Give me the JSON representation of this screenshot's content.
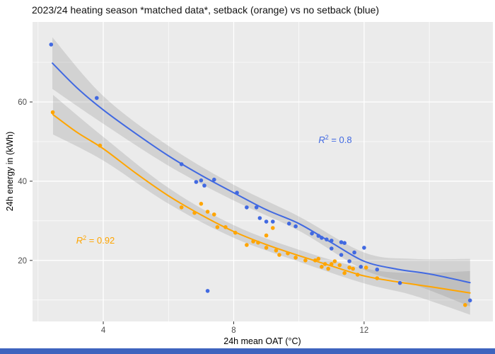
{
  "chart_data": {
    "type": "scatter",
    "title": "2023/24 heating season *matched data*, setback (orange) vs no setback (blue)",
    "xlabel": "24h mean OAT (°C)",
    "ylabel": "24h energy in (kWh)",
    "xlim": [
      1.83,
      15.95
    ],
    "ylim": [
      4.6,
      80.2
    ],
    "x_major_ticks": [
      4,
      8,
      12
    ],
    "x_minor_ticks": [
      2,
      6,
      10,
      14
    ],
    "y_major_ticks": [
      20,
      40,
      60
    ],
    "y_minor_ticks": [
      10,
      30,
      50,
      70
    ],
    "grid": true,
    "legend_position": "none",
    "panel_background": "#EBEBEB",
    "gridline_color": "#FFFFFF",
    "tick_label_color": "#4D4D4D",
    "tick_mark_color": "#333333",
    "ribbon_color": "#7B7B7B",
    "ribbon_opacity": 0.22,
    "series": [
      {
        "name": "no setback (blue)",
        "color": "#4169E1",
        "r_squared": 0.8,
        "points": [
          [
            2.4,
            74.5
          ],
          [
            3.8,
            61.0
          ],
          [
            6.4,
            44.3
          ],
          [
            6.85,
            39.8
          ],
          [
            7.0,
            40.2
          ],
          [
            7.1,
            38.9
          ],
          [
            7.4,
            40.4
          ],
          [
            8.1,
            37.1
          ],
          [
            8.4,
            33.4
          ],
          [
            8.7,
            33.4
          ],
          [
            8.8,
            30.7
          ],
          [
            9.0,
            29.8
          ],
          [
            9.2,
            29.8
          ],
          [
            9.7,
            29.3
          ],
          [
            9.9,
            28.6
          ],
          [
            10.4,
            26.8
          ],
          [
            10.6,
            26.2
          ],
          [
            10.7,
            25.7
          ],
          [
            10.85,
            25.3
          ],
          [
            11.0,
            25.0
          ],
          [
            11.0,
            23.0
          ],
          [
            11.3,
            24.6
          ],
          [
            11.4,
            24.4
          ],
          [
            11.3,
            21.4
          ],
          [
            11.55,
            19.8
          ],
          [
            11.7,
            22.0
          ],
          [
            12.0,
            23.2
          ],
          [
            11.9,
            18.4
          ],
          [
            12.4,
            17.7
          ],
          [
            13.1,
            14.3
          ],
          [
            15.25,
            9.9
          ],
          [
            7.2,
            12.3
          ]
        ],
        "smooth_line": [
          [
            2.44,
            69.8
          ],
          [
            3.2,
            63.5
          ],
          [
            4,
            58.0
          ],
          [
            5,
            52.0
          ],
          [
            6,
            46.4
          ],
          [
            7,
            41.5
          ],
          [
            8,
            37.1
          ],
          [
            9,
            32.8
          ],
          [
            10,
            29.3
          ],
          [
            11,
            24.5
          ],
          [
            12,
            19.8
          ],
          [
            13,
            17.8
          ],
          [
            14,
            16.6
          ],
          [
            15.25,
            14.4
          ]
        ],
        "ribbon_upper": [
          [
            2.44,
            76.3
          ],
          [
            4,
            61.5
          ],
          [
            6,
            48.9
          ],
          [
            8,
            39.1
          ],
          [
            10,
            31.1
          ],
          [
            12,
            22.0
          ],
          [
            13.5,
            20.4
          ],
          [
            15.25,
            20.4
          ]
        ],
        "ribbon_lower": [
          [
            2.44,
            63.3
          ],
          [
            4,
            54.5
          ],
          [
            6,
            43.9
          ],
          [
            8,
            35.1
          ],
          [
            10,
            27.5
          ],
          [
            12,
            17.6
          ],
          [
            13.5,
            14.0
          ],
          [
            15.25,
            8.4
          ]
        ]
      },
      {
        "name": "setback (orange)",
        "color": "#FFA500",
        "r_squared": 0.92,
        "points": [
          [
            2.45,
            57.4
          ],
          [
            3.9,
            49.0
          ],
          [
            6.4,
            33.4
          ],
          [
            6.8,
            32.0
          ],
          [
            7.0,
            34.3
          ],
          [
            7.2,
            32.3
          ],
          [
            7.4,
            31.6
          ],
          [
            7.5,
            28.4
          ],
          [
            7.75,
            28.4
          ],
          [
            8.05,
            27.0
          ],
          [
            8.4,
            23.9
          ],
          [
            8.6,
            24.8
          ],
          [
            8.75,
            24.5
          ],
          [
            9.0,
            26.3
          ],
          [
            9.2,
            28.2
          ],
          [
            9.0,
            23.2
          ],
          [
            9.3,
            22.5
          ],
          [
            9.4,
            21.4
          ],
          [
            9.66,
            21.8
          ],
          [
            9.9,
            20.7
          ],
          [
            10.2,
            20.0
          ],
          [
            10.5,
            20.0
          ],
          [
            10.6,
            20.4
          ],
          [
            10.7,
            18.4
          ],
          [
            10.8,
            19.1
          ],
          [
            10.9,
            17.9
          ],
          [
            11.0,
            19.1
          ],
          [
            11.1,
            19.8
          ],
          [
            11.25,
            18.8
          ],
          [
            11.4,
            16.8
          ],
          [
            11.55,
            18.2
          ],
          [
            11.66,
            17.9
          ],
          [
            11.8,
            16.4
          ],
          [
            12.06,
            18.2
          ],
          [
            12.4,
            15.5
          ],
          [
            15.1,
            8.75
          ]
        ],
        "smooth_line": [
          [
            2.46,
            56.8
          ],
          [
            3.2,
            52.3
          ],
          [
            4,
            48.2
          ],
          [
            5,
            42.0
          ],
          [
            6,
            36.3
          ],
          [
            7,
            31.5
          ],
          [
            8,
            27.3
          ],
          [
            9,
            24.0
          ],
          [
            10,
            21.2
          ],
          [
            11,
            18.6
          ],
          [
            12,
            16.1
          ],
          [
            13,
            14.6
          ],
          [
            14,
            13.4
          ],
          [
            15.25,
            11.8
          ]
        ],
        "ribbon_upper": [
          [
            2.46,
            61.8
          ],
          [
            4,
            51.2
          ],
          [
            6,
            38.3
          ],
          [
            8,
            28.9
          ],
          [
            10,
            22.7
          ],
          [
            12,
            18.0
          ],
          [
            13.5,
            16.8
          ],
          [
            15.25,
            17.3
          ]
        ],
        "ribbon_lower": [
          [
            2.46,
            51.8
          ],
          [
            4,
            45.2
          ],
          [
            6,
            34.3
          ],
          [
            8,
            25.7
          ],
          [
            10,
            19.7
          ],
          [
            12,
            14.2
          ],
          [
            13.5,
            11.2
          ],
          [
            15.25,
            6.3
          ]
        ]
      }
    ],
    "annotations": [
      {
        "id": "r2-blue",
        "var": "R",
        "sup": "2",
        "rest": " = 0.8",
        "x": 10.6,
        "y": 49.6,
        "color": "#4169E1"
      },
      {
        "id": "r2-orange",
        "var": "R",
        "sup": "2",
        "rest": " = 0.92",
        "x": 3.17,
        "y": 24.3,
        "color": "#FFA500"
      }
    ]
  },
  "ui": {
    "bottom_strip_color": "#3E64BE"
  }
}
